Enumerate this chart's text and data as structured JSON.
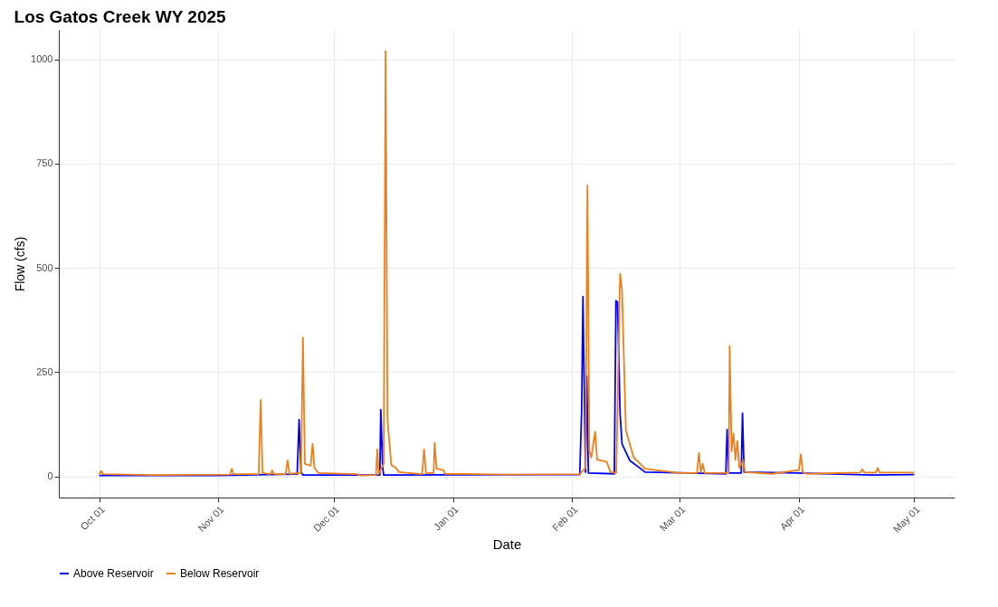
{
  "chart_data": {
    "type": "line",
    "title": "Los Gatos Creek WY 2025",
    "xlabel": "Date",
    "ylabel": "Flow (cfs)",
    "xlim": [
      "2024-09-20T12:00",
      "2025-05-11T12:00"
    ],
    "xticks": [
      {
        "value": "2024-10-01",
        "label": "Oct 01"
      },
      {
        "value": "2024-11-01",
        "label": "Nov 01"
      },
      {
        "value": "2024-12-01",
        "label": "Dec 01"
      },
      {
        "value": "2025-01-01",
        "label": "Jan 01"
      },
      {
        "value": "2025-02-01",
        "label": "Feb 01"
      },
      {
        "value": "2025-03-01",
        "label": "Mar 01"
      },
      {
        "value": "2025-04-01",
        "label": "Apr 01"
      },
      {
        "value": "2025-05-01",
        "label": "May 01"
      }
    ],
    "ylim": [
      -51,
      1071
    ],
    "yticks": [
      0,
      250,
      500,
      750,
      1000
    ],
    "grid": true,
    "legend": "bottom",
    "line_style": "solid",
    "series": [
      {
        "name": "Above Reservoir",
        "color": "#0000ff",
        "x": [
          "2024-10-01",
          "2024-11-01",
          "2024-11-21T12:00",
          "2024-11-22",
          "2024-11-22T12:00",
          "2024-11-23",
          "2024-12-13",
          "2024-12-13T06:00",
          "2024-12-13T18:00",
          "2024-12-14",
          "2025-02-03",
          "2025-02-03T12:00",
          "2025-02-03T20:00",
          "2025-02-04T12:00",
          "2025-02-04T20:00",
          "2025-02-05T06:00",
          "2025-02-12",
          "2025-02-12T10:00",
          "2025-02-12T20:00",
          "2025-02-13T12:00",
          "2025-02-14",
          "2025-02-16",
          "2025-02-20",
          "2025-03-13",
          "2025-03-13T08:00",
          "2025-03-13T18:00",
          "2025-03-17",
          "2025-03-17T08:00",
          "2025-03-17T18:00",
          "2025-04-01",
          "2025-04-20",
          "2025-05-01"
        ],
        "values": [
          2,
          2,
          5,
          136,
          10,
          3,
          3,
          160,
          20,
          3,
          4,
          159,
          431,
          10,
          240,
          8,
          6,
          421,
          418,
          150,
          78,
          38,
          10,
          6,
          112,
          8,
          8,
          151,
          10,
          8,
          3,
          4
        ]
      },
      {
        "name": "Below Reservoir",
        "color": "#ef7f1a",
        "x": [
          "2024-10-01",
          "2024-10-01T12:00",
          "2024-10-02",
          "2024-10-15",
          "2024-11-04",
          "2024-11-04T12:00",
          "2024-11-05",
          "2024-11-11T12:00",
          "2024-11-12",
          "2024-11-12T12:00",
          "2024-11-14T12:00",
          "2024-11-15",
          "2024-11-15T12:00",
          "2024-11-18T12:00",
          "2024-11-19",
          "2024-11-19T12:00",
          "2024-11-22T12:00",
          "2024-11-23",
          "2024-11-23T12:00",
          "2024-11-25",
          "2024-11-25T12:00",
          "2024-11-26",
          "2024-11-27",
          "2024-12-07",
          "2024-12-08",
          "2024-12-12",
          "2024-12-12T08:00",
          "2024-12-12T16:00",
          "2024-12-14",
          "2024-12-14T12:00",
          "2024-12-15",
          "2024-12-16",
          "2024-12-17",
          "2024-12-18",
          "2024-12-24",
          "2024-12-24T12:00",
          "2024-12-25",
          "2024-12-27",
          "2024-12-27T06:00",
          "2024-12-27T18:00",
          "2024-12-29T12:00",
          "2024-12-30",
          "2025-01-15",
          "2025-02-03",
          "2025-02-04T12:00",
          "2025-02-05",
          "2025-02-05T12:00",
          "2025-02-06",
          "2025-02-07",
          "2025-02-07T12:00",
          "2025-02-10",
          "2025-02-11",
          "2025-02-12T12:00",
          "2025-02-13T12:00",
          "2025-02-14",
          "2025-02-14T12:00",
          "2025-02-15",
          "2025-02-17",
          "2025-02-20",
          "2025-03-01",
          "2025-03-05T12:00",
          "2025-03-06",
          "2025-03-06T12:00",
          "2025-03-07",
          "2025-03-07T12:00",
          "2025-03-13T18:00",
          "2025-03-14",
          "2025-03-14T12:00",
          "2025-03-15",
          "2025-03-15T12:00",
          "2025-03-16",
          "2025-03-16T12:00",
          "2025-03-17T12:00",
          "2025-03-18",
          "2025-03-25",
          "2025-04-01",
          "2025-04-01T12:00",
          "2025-04-02",
          "2025-04-03",
          "2025-04-17",
          "2025-04-17T12:00",
          "2025-04-18",
          "2025-04-21",
          "2025-04-21T12:00",
          "2025-04-22",
          "2025-05-01"
        ],
        "values": [
          5,
          13,
          5,
          3,
          4,
          18,
          5,
          5,
          183,
          8,
          5,
          14,
          5,
          5,
          38,
          6,
          8,
          333,
          30,
          25,
          78,
          20,
          8,
          5,
          2,
          3,
          65,
          5,
          30,
          1020,
          135,
          26,
          22,
          10,
          5,
          65,
          8,
          8,
          80,
          18,
          15,
          6,
          4,
          5,
          20,
          698,
          60,
          45,
          107,
          40,
          35,
          10,
          8,
          486,
          447,
          279,
          110,
          46,
          18,
          8,
          8,
          56,
          10,
          30,
          8,
          8,
          312,
          60,
          103,
          40,
          85,
          20,
          38,
          10,
          6,
          15,
          53,
          10,
          6,
          9,
          17,
          9,
          9,
          20,
          9,
          9
        ]
      }
    ]
  }
}
